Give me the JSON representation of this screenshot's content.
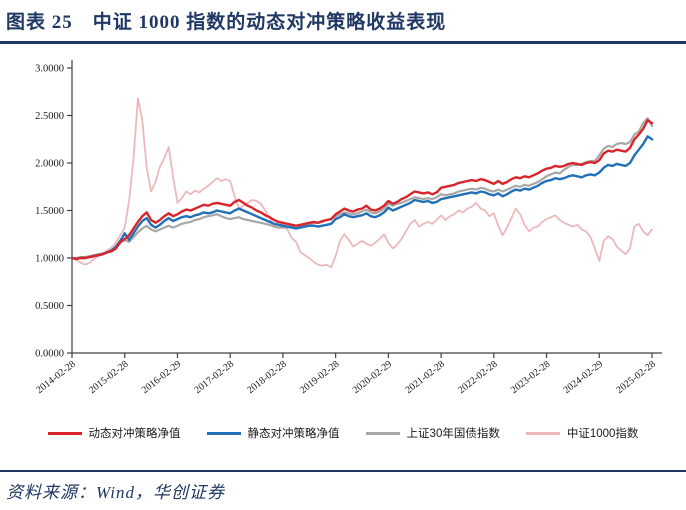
{
  "figure": {
    "title": "图表 25　中证 1000 指数的动态对冲策略收益表现",
    "source": "资料来源：Wind，华创证券"
  },
  "colors": {
    "accent_navy": "#1F3864",
    "dynamic": "#D9242B",
    "static": "#2170B8",
    "bond": "#A7A7A7",
    "csi1000": "#EDB8BC",
    "axis": "#404040"
  },
  "chart_data": {
    "type": "line",
    "title": "",
    "xlabel": "",
    "ylabel": "",
    "ylim": [
      0.0,
      3.0
    ],
    "y_tick_labels": [
      "0.0000",
      "0.5000",
      "1.0000",
      "1.5000",
      "2.0000",
      "2.5000",
      "3.0000"
    ],
    "x_tick_labels": [
      "2014-02-28",
      "2015-02-28",
      "2016-02-29",
      "2017-02-28",
      "2018-02-28",
      "2019-02-28",
      "2020-02-29",
      "2021-02-28",
      "2022-02-28",
      "2023-02-28",
      "2024-02-29",
      "2025-02-28"
    ],
    "x_frequency": "monthly",
    "x_start": "2014-02",
    "x_end": "2025-02",
    "grid": false,
    "legend_position": "bottom",
    "series": [
      {
        "name": "动态对冲策略净值",
        "color_key": "dynamic",
        "values": [
          1.0,
          0.99,
          1.0,
          1.0,
          1.01,
          1.02,
          1.03,
          1.04,
          1.06,
          1.07,
          1.1,
          1.17,
          1.2,
          1.24,
          1.31,
          1.38,
          1.44,
          1.48,
          1.4,
          1.37,
          1.4,
          1.44,
          1.47,
          1.44,
          1.46,
          1.49,
          1.51,
          1.5,
          1.52,
          1.54,
          1.56,
          1.55,
          1.57,
          1.58,
          1.57,
          1.56,
          1.55,
          1.59,
          1.61,
          1.58,
          1.55,
          1.53,
          1.5,
          1.48,
          1.45,
          1.43,
          1.4,
          1.38,
          1.37,
          1.36,
          1.35,
          1.34,
          1.35,
          1.36,
          1.37,
          1.38,
          1.37,
          1.39,
          1.4,
          1.41,
          1.46,
          1.49,
          1.52,
          1.5,
          1.49,
          1.51,
          1.52,
          1.55,
          1.51,
          1.5,
          1.52,
          1.55,
          1.6,
          1.57,
          1.59,
          1.62,
          1.64,
          1.67,
          1.7,
          1.69,
          1.68,
          1.69,
          1.67,
          1.69,
          1.74,
          1.75,
          1.76,
          1.77,
          1.79,
          1.8,
          1.81,
          1.82,
          1.81,
          1.83,
          1.82,
          1.8,
          1.78,
          1.81,
          1.78,
          1.8,
          1.83,
          1.85,
          1.84,
          1.86,
          1.85,
          1.87,
          1.89,
          1.92,
          1.94,
          1.95,
          1.97,
          1.96,
          1.97,
          1.99,
          2.0,
          1.99,
          1.98,
          2.0,
          2.01,
          2.0,
          2.03,
          2.1,
          2.13,
          2.12,
          2.14,
          2.13,
          2.12,
          2.16,
          2.25,
          2.3,
          2.36,
          2.45,
          2.42
        ]
      },
      {
        "name": "静态对冲策略净值",
        "color_key": "static",
        "values": [
          1.0,
          0.99,
          1.0,
          1.0,
          1.01,
          1.02,
          1.03,
          1.04,
          1.06,
          1.08,
          1.12,
          1.18,
          1.26,
          1.19,
          1.26,
          1.33,
          1.39,
          1.42,
          1.35,
          1.32,
          1.35,
          1.39,
          1.42,
          1.39,
          1.41,
          1.43,
          1.44,
          1.43,
          1.45,
          1.46,
          1.48,
          1.47,
          1.48,
          1.5,
          1.49,
          1.48,
          1.47,
          1.5,
          1.52,
          1.5,
          1.48,
          1.46,
          1.44,
          1.42,
          1.4,
          1.38,
          1.36,
          1.35,
          1.34,
          1.33,
          1.32,
          1.31,
          1.32,
          1.33,
          1.34,
          1.34,
          1.33,
          1.34,
          1.35,
          1.36,
          1.41,
          1.43,
          1.46,
          1.44,
          1.43,
          1.44,
          1.45,
          1.47,
          1.44,
          1.43,
          1.45,
          1.48,
          1.53,
          1.5,
          1.52,
          1.54,
          1.56,
          1.58,
          1.61,
          1.6,
          1.59,
          1.6,
          1.58,
          1.59,
          1.62,
          1.63,
          1.64,
          1.65,
          1.66,
          1.67,
          1.68,
          1.69,
          1.68,
          1.7,
          1.69,
          1.67,
          1.66,
          1.68,
          1.65,
          1.67,
          1.7,
          1.72,
          1.71,
          1.73,
          1.72,
          1.74,
          1.76,
          1.79,
          1.81,
          1.82,
          1.84,
          1.83,
          1.84,
          1.86,
          1.87,
          1.86,
          1.85,
          1.87,
          1.88,
          1.87,
          1.9,
          1.95,
          1.98,
          1.97,
          1.99,
          1.98,
          1.97,
          2.0,
          2.08,
          2.14,
          2.2,
          2.28,
          2.25
        ]
      },
      {
        "name": "上证30年国债指数",
        "color_key": "bond",
        "values": [
          1.0,
          1.0,
          1.01,
          1.01,
          1.02,
          1.03,
          1.04,
          1.05,
          1.06,
          1.07,
          1.1,
          1.16,
          1.19,
          1.17,
          1.22,
          1.27,
          1.31,
          1.34,
          1.3,
          1.28,
          1.3,
          1.32,
          1.34,
          1.32,
          1.34,
          1.36,
          1.37,
          1.38,
          1.4,
          1.41,
          1.43,
          1.44,
          1.45,
          1.46,
          1.44,
          1.42,
          1.41,
          1.42,
          1.43,
          1.41,
          1.4,
          1.39,
          1.38,
          1.37,
          1.36,
          1.35,
          1.33,
          1.32,
          1.32,
          1.32,
          1.33,
          1.33,
          1.34,
          1.35,
          1.36,
          1.37,
          1.37,
          1.38,
          1.4,
          1.41,
          1.44,
          1.46,
          1.48,
          1.47,
          1.46,
          1.47,
          1.49,
          1.51,
          1.48,
          1.47,
          1.49,
          1.52,
          1.57,
          1.55,
          1.57,
          1.58,
          1.6,
          1.62,
          1.64,
          1.63,
          1.62,
          1.63,
          1.62,
          1.64,
          1.67,
          1.66,
          1.67,
          1.68,
          1.7,
          1.71,
          1.72,
          1.73,
          1.72,
          1.74,
          1.73,
          1.71,
          1.7,
          1.72,
          1.7,
          1.72,
          1.74,
          1.76,
          1.75,
          1.77,
          1.76,
          1.78,
          1.8,
          1.83,
          1.86,
          1.88,
          1.9,
          1.89,
          1.93,
          1.96,
          1.98,
          1.98,
          1.99,
          2.01,
          2.02,
          2.02,
          2.08,
          2.15,
          2.18,
          2.17,
          2.2,
          2.21,
          2.2,
          2.22,
          2.3,
          2.33,
          2.42,
          2.47,
          2.39
        ]
      },
      {
        "name": "中证1000指数",
        "color_key": "csi1000",
        "values": [
          1.0,
          0.98,
          0.95,
          0.93,
          0.95,
          0.99,
          1.02,
          1.05,
          1.08,
          1.11,
          1.16,
          1.24,
          1.32,
          1.6,
          2.05,
          2.68,
          2.45,
          1.95,
          1.7,
          1.8,
          1.96,
          2.05,
          2.17,
          1.85,
          1.58,
          1.63,
          1.7,
          1.67,
          1.71,
          1.69,
          1.73,
          1.76,
          1.8,
          1.84,
          1.81,
          1.83,
          1.81,
          1.65,
          1.52,
          1.55,
          1.58,
          1.61,
          1.6,
          1.57,
          1.5,
          1.42,
          1.34,
          1.38,
          1.36,
          1.3,
          1.21,
          1.17,
          1.06,
          1.03,
          1.0,
          0.96,
          0.93,
          0.92,
          0.93,
          0.9,
          1.02,
          1.18,
          1.25,
          1.19,
          1.12,
          1.15,
          1.18,
          1.15,
          1.13,
          1.16,
          1.2,
          1.25,
          1.16,
          1.1,
          1.14,
          1.2,
          1.28,
          1.36,
          1.4,
          1.33,
          1.36,
          1.38,
          1.36,
          1.4,
          1.45,
          1.4,
          1.44,
          1.46,
          1.5,
          1.48,
          1.52,
          1.54,
          1.58,
          1.52,
          1.5,
          1.44,
          1.47,
          1.34,
          1.24,
          1.32,
          1.42,
          1.52,
          1.46,
          1.35,
          1.28,
          1.32,
          1.33,
          1.38,
          1.41,
          1.43,
          1.45,
          1.4,
          1.37,
          1.35,
          1.33,
          1.35,
          1.3,
          1.28,
          1.22,
          1.1,
          0.97,
          1.18,
          1.23,
          1.2,
          1.12,
          1.08,
          1.04,
          1.1,
          1.33,
          1.36,
          1.28,
          1.24,
          1.3
        ]
      }
    ]
  }
}
